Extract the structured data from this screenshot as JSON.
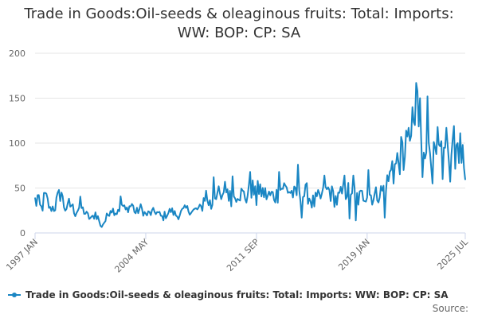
{
  "chart_data": {
    "type": "line",
    "title_lines": [
      "Trade in Goods:Oil-seeds & oleaginous fruits: Total: Imports:",
      "WW: BOP: CP: SA"
    ],
    "xlabel": "",
    "ylabel": "",
    "ylim": [
      0,
      200
    ],
    "yticks": [
      0,
      50,
      100,
      150,
      200
    ],
    "xticks": [
      "1997 JAN",
      "2004 MAY",
      "2011 SEP",
      "2019 JAN",
      "2025 JUL"
    ],
    "grid": true,
    "legend_position": "bottom",
    "series": [
      {
        "name": "Trade in Goods:Oil-seeds & oleaginous fruits: Total: Imports: WW: BOP: CP: SA",
        "color": "#1a86c3",
        "anchors": [
          [
            "1997-01",
            36
          ],
          [
            "1997-06",
            28
          ],
          [
            "1997-09",
            40
          ],
          [
            "1998-01",
            26
          ],
          [
            "1998-06",
            33
          ],
          [
            "1998-09",
            44
          ],
          [
            "1999-01",
            27
          ],
          [
            "1999-06",
            32
          ],
          [
            "1999-09",
            22
          ],
          [
            "2000-01",
            30
          ],
          [
            "2000-06",
            20
          ],
          [
            "2000-10",
            15
          ],
          [
            "2001-01",
            22
          ],
          [
            "2001-06",
            9
          ],
          [
            "2001-09",
            14
          ],
          [
            "2002-01",
            27
          ],
          [
            "2002-06",
            23
          ],
          [
            "2002-09",
            34
          ],
          [
            "2003-01",
            25
          ],
          [
            "2003-06",
            32
          ],
          [
            "2003-09",
            22
          ],
          [
            "2004-01",
            28
          ],
          [
            "2004-05",
            20
          ],
          [
            "2005-01",
            24
          ],
          [
            "2005-06",
            17
          ],
          [
            "2006-01",
            25
          ],
          [
            "2006-06",
            19
          ],
          [
            "2007-01",
            27
          ],
          [
            "2007-06",
            24
          ],
          [
            "2008-01",
            28
          ],
          [
            "2008-04",
            42
          ],
          [
            "2008-09",
            30
          ],
          [
            "2009-01",
            46
          ],
          [
            "2009-06",
            35
          ],
          [
            "2009-10",
            49
          ],
          [
            "2010-01",
            33
          ],
          [
            "2010-06",
            46
          ],
          [
            "2011-01",
            40
          ],
          [
            "2011-06",
            50
          ],
          [
            "2011-09",
            37
          ],
          [
            "2012-01",
            46
          ],
          [
            "2012-06",
            41
          ],
          [
            "2013-01",
            42
          ],
          [
            "2013-06",
            52
          ],
          [
            "2014-01",
            45
          ],
          [
            "2014-06",
            38
          ],
          [
            "2015-01",
            45
          ],
          [
            "2015-06",
            33
          ],
          [
            "2016-01",
            40
          ],
          [
            "2016-06",
            48
          ],
          [
            "2017-01",
            36
          ],
          [
            "2017-06",
            45
          ],
          [
            "2018-01",
            48
          ],
          [
            "2018-06",
            38
          ],
          [
            "2019-01",
            45
          ],
          [
            "2019-06",
            40
          ],
          [
            "2020-01",
            47
          ],
          [
            "2020-06",
            60
          ],
          [
            "2021-01",
            78
          ],
          [
            "2021-06",
            92
          ],
          [
            "2022-01",
            112
          ],
          [
            "2022-05",
            130
          ],
          [
            "2022-08",
            95
          ],
          [
            "2023-01",
            105
          ],
          [
            "2023-06",
            82
          ],
          [
            "2024-01",
            90
          ],
          [
            "2024-06",
            85
          ],
          [
            "2025-01",
            92
          ],
          [
            "2025-07",
            90
          ]
        ],
        "spikes": [
          [
            "1997-03",
            42
          ],
          [
            "1998-10",
            45
          ],
          [
            "2001-05",
            8
          ],
          [
            "2008-05",
            47
          ],
          [
            "2008-11",
            62
          ],
          [
            "2009-08",
            57
          ],
          [
            "2010-02",
            63
          ],
          [
            "2011-04",
            68
          ],
          [
            "2011-10",
            58
          ],
          [
            "2013-03",
            68
          ],
          [
            "2014-06",
            76
          ],
          [
            "2014-09",
            17
          ],
          [
            "2016-03",
            64
          ],
          [
            "2017-07",
            64
          ],
          [
            "2017-11",
            16
          ],
          [
            "2018-02",
            64
          ],
          [
            "2018-04",
            14
          ],
          [
            "2019-02",
            70
          ],
          [
            "2020-03",
            17
          ],
          [
            "2020-09",
            80
          ],
          [
            "2021-04",
            107
          ],
          [
            "2021-06",
            70
          ],
          [
            "2021-08",
            114
          ],
          [
            "2021-10",
            117
          ],
          [
            "2022-01",
            140
          ],
          [
            "2022-04",
            167
          ],
          [
            "2022-05",
            158
          ],
          [
            "2022-07",
            150
          ],
          [
            "2022-09",
            62
          ],
          [
            "2023-01",
            152
          ],
          [
            "2023-05",
            55
          ],
          [
            "2023-09",
            118
          ],
          [
            "2024-01",
            60
          ],
          [
            "2024-04",
            117
          ],
          [
            "2024-07",
            57
          ],
          [
            "2024-10",
            119
          ],
          [
            "2025-01",
            100
          ],
          [
            "2025-04",
            78
          ],
          [
            "2025-05",
            98
          ],
          [
            "2025-07",
            59
          ]
        ]
      }
    ],
    "source_label": "Source:"
  }
}
